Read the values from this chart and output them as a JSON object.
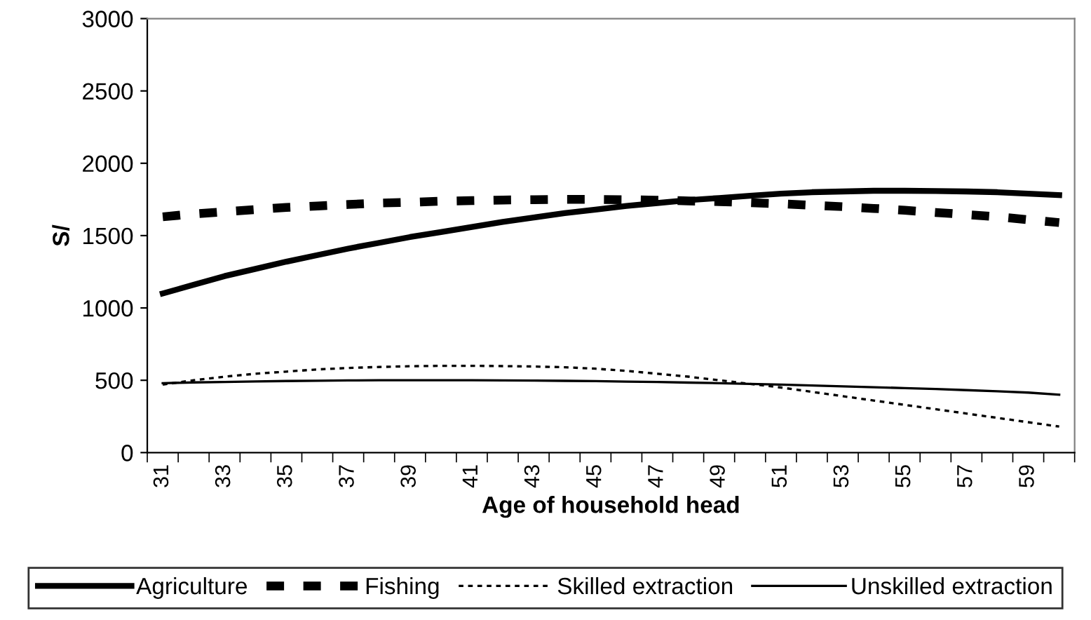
{
  "chart_data": {
    "type": "line",
    "xlabel": "Age of household head",
    "ylabel": "S/",
    "categories": [
      "31",
      null,
      "33",
      null,
      "35",
      null,
      "37",
      null,
      "39",
      null,
      "41",
      null,
      "43",
      null,
      "45",
      null,
      "47",
      null,
      "49",
      null,
      "51",
      null,
      "53",
      null,
      "55",
      null,
      "57",
      null,
      "59",
      null
    ],
    "series": [
      {
        "name": "Agriculture",
        "color": "#000000",
        "line_style": "solid",
        "values": [
          1100,
          1160,
          1220,
          1270,
          1320,
          1365,
          1410,
          1450,
          1490,
          1525,
          1560,
          1595,
          1625,
          1655,
          1680,
          1705,
          1725,
          1745,
          1760,
          1775,
          1790,
          1800,
          1805,
          1810,
          1810,
          1808,
          1805,
          1800,
          1790,
          1780
        ]
      },
      {
        "name": "Fishing",
        "color": "#000000",
        "line_style": "dashed",
        "values": [
          1630,
          1650,
          1665,
          1680,
          1695,
          1705,
          1715,
          1725,
          1730,
          1738,
          1742,
          1746,
          1748,
          1750,
          1750,
          1748,
          1745,
          1740,
          1735,
          1728,
          1720,
          1710,
          1700,
          1688,
          1675,
          1660,
          1645,
          1630,
          1610,
          1590
        ]
      },
      {
        "name": "Skilled extraction",
        "color": "#000000",
        "line_style": "dotted",
        "values": [
          470,
          500,
          525,
          545,
          560,
          575,
          585,
          592,
          597,
          600,
          600,
          598,
          595,
          590,
          580,
          565,
          545,
          525,
          500,
          475,
          450,
          420,
          390,
          360,
          330,
          300,
          270,
          240,
          210,
          180
        ]
      },
      {
        "name": "Unskilled extraction",
        "color": "#000000",
        "line_style": "solid",
        "values": [
          480,
          485,
          488,
          492,
          495,
          497,
          499,
          500,
          500,
          500,
          500,
          499,
          498,
          496,
          494,
          491,
          488,
          484,
          480,
          475,
          470,
          464,
          458,
          452,
          446,
          440,
          432,
          424,
          415,
          400
        ]
      }
    ],
    "ylim": [
      0,
      3000
    ],
    "yticks": [
      0,
      500,
      1000,
      1500,
      2000,
      2500,
      3000
    ],
    "grid": false,
    "legend": "bottom",
    "marker": "none"
  }
}
